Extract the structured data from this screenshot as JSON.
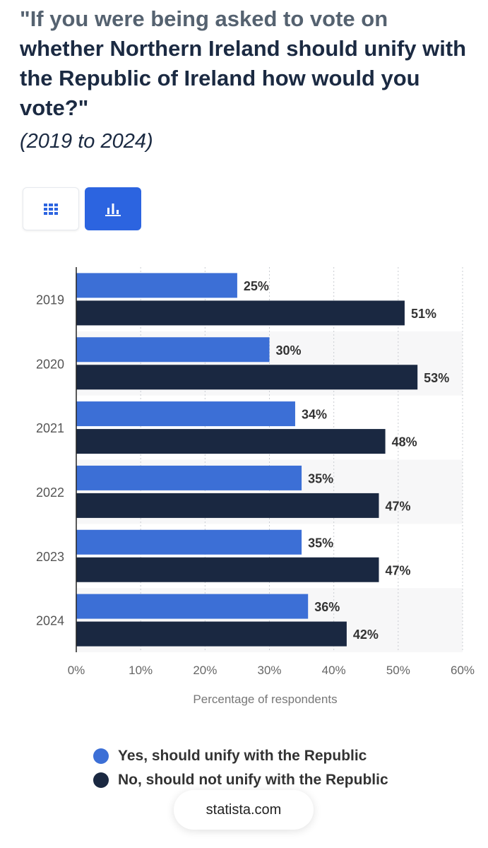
{
  "header": {
    "title_part1": "\"If you were being asked to vote on",
    "title_part2": "whether Northern Ireland should unify with the Republic of Ireland how would you vote?\"",
    "subtitle": "(2019 to 2024)"
  },
  "view_toggle": {
    "table_icon": "grid-icon",
    "chart_icon": "bar-chart-icon",
    "active": "chart"
  },
  "colors": {
    "yes": "#3c6fd6",
    "no": "#1a2841",
    "active_button": "#2c64e0"
  },
  "chart_data": {
    "type": "bar",
    "orientation": "horizontal",
    "categories": [
      "2019",
      "2020",
      "2021",
      "2022",
      "2023",
      "2024"
    ],
    "series": [
      {
        "name": "Yes, should unify with the Republic",
        "values": [
          25,
          30,
          34,
          35,
          35,
          36
        ]
      },
      {
        "name": "No, should not unify with the Republic",
        "values": [
          51,
          53,
          48,
          47,
          47,
          42
        ]
      }
    ],
    "value_suffix": "%",
    "xlabel": "Percentage of respondents",
    "xlim": [
      0,
      60
    ],
    "xticks": [
      "0%",
      "10%",
      "20%",
      "30%",
      "40%",
      "50%",
      "60%"
    ],
    "grid": "vertical dotted",
    "legend_position": "bottom"
  },
  "source": "statista.com"
}
